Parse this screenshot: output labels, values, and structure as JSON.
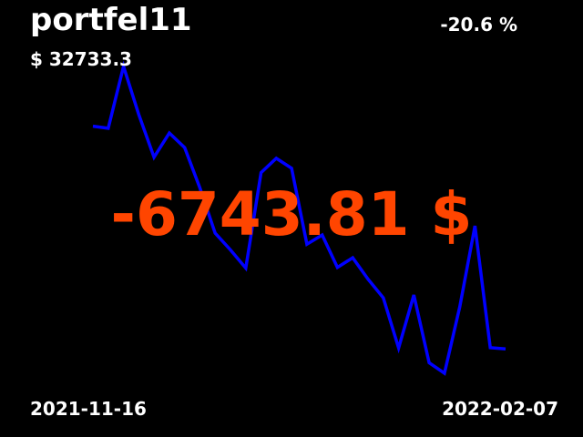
{
  "portfolio": {
    "name": "portfel11",
    "value": "$ 32733.3",
    "change_percent": "-20.6 %",
    "change_amount": "-6743.81 $"
  },
  "dates": {
    "start": "2021-11-16",
    "end": "2022-02-07"
  },
  "colors": {
    "background": "#000000",
    "text": "#ffffff",
    "line": "#0000ff",
    "loss": "#ff4500"
  },
  "chart_data": {
    "type": "line",
    "title": "",
    "xlabel": "",
    "ylabel": "",
    "grid": false,
    "series": [
      {
        "values": [
          0.756,
          0.748,
          0.985,
          0.801,
          0.637,
          0.73,
          0.674,
          0.52,
          0.346,
          0.282,
          0.212,
          0.578,
          0.633,
          0.595,
          0.304,
          0.339,
          0.215,
          0.252,
          0.17,
          0.098,
          -0.094,
          0.109,
          -0.151,
          -0.191,
          0.063,
          0.374,
          -0.093,
          -0.098
        ]
      }
    ]
  }
}
